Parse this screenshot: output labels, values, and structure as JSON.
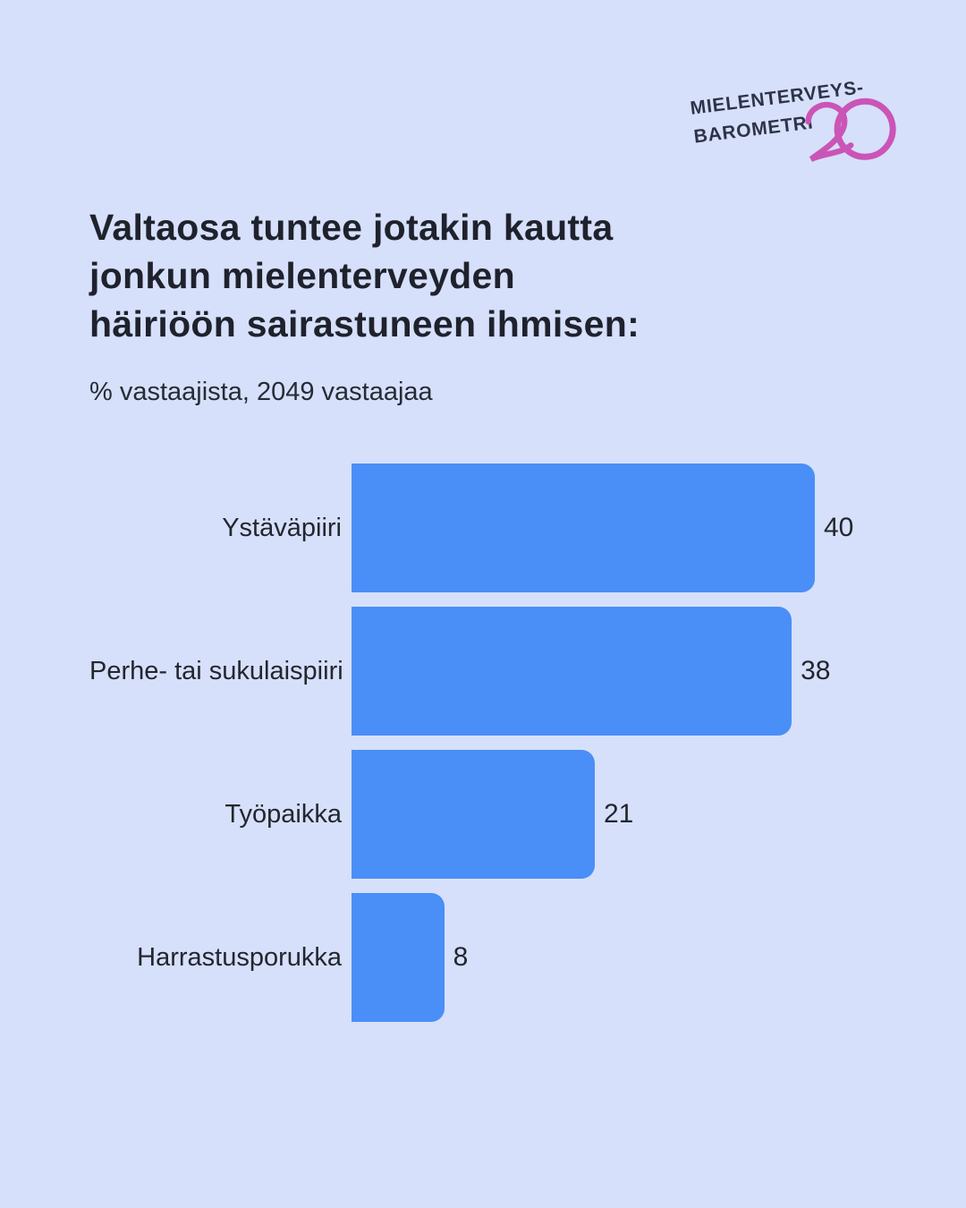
{
  "logo": {
    "line1": "MIELENTERVEYS-",
    "line2": "BAROMETRI",
    "anniversary": "20"
  },
  "title": {
    "lines": [
      "Valtaosa tuntee jotakin kautta",
      "jonkun mielenterveyden",
      "häiriöön sairastuneen ihmisen:"
    ]
  },
  "subtitle": "% vastaajista, 2049 vastaajaa",
  "colors": {
    "background": "#d6e0fa",
    "bar": "#4a8ef7",
    "title_text": "#1f222d",
    "body_text": "#23262f",
    "logo_navy": "#2e3349",
    "logo_pink": "#ca55b6"
  },
  "chart_data": {
    "type": "bar",
    "orientation": "horizontal",
    "title": "Valtaosa tuntee jotakin kautta jonkun mielenterveyden häiriöön sairastuneen ihmisen:",
    "subtitle": "% vastaajista, 2049 vastaajaa",
    "categories": [
      "Ystäväpiiri",
      "Perhe- tai sukulaispiiri",
      "Työpaikka",
      "Harrastusporukka"
    ],
    "values": [
      40,
      38,
      21,
      8
    ],
    "xlabel": "",
    "ylabel": "",
    "xlim": [
      0,
      40
    ],
    "grid": false,
    "legend": false,
    "data_labels": true
  }
}
